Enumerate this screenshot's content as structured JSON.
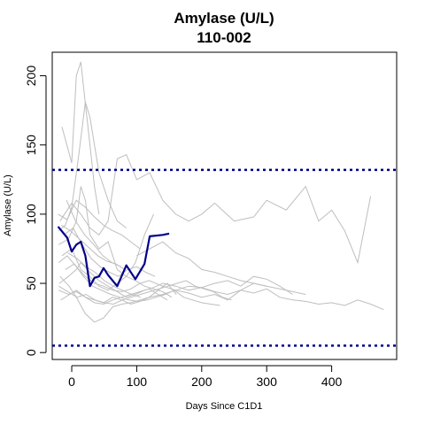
{
  "chart_data": {
    "type": "line",
    "title": "Amylase (U/L)",
    "subtitle": "110-002",
    "xlabel": "Days Since C1D1",
    "ylabel": "Amylase (U/L)",
    "xlim": [
      -30,
      500
    ],
    "ylim": [
      -5,
      217
    ],
    "xticks": [
      0,
      100,
      200,
      300,
      400
    ],
    "yticks": [
      0,
      50,
      100,
      150,
      200
    ],
    "reference_lines": [
      {
        "y": 132,
        "style": "dotted",
        "color": "#00008b"
      },
      {
        "y": 5,
        "style": "dotted",
        "color": "#00008b"
      }
    ],
    "highlight": {
      "name": "110-002",
      "color": "#00008b",
      "x": [
        -21,
        -7,
        0,
        7,
        14,
        21,
        28,
        35,
        42,
        49,
        56,
        70,
        84,
        98,
        112,
        120,
        140,
        150
      ],
      "y": [
        91,
        83,
        73,
        78,
        80,
        70,
        48,
        54,
        55,
        61,
        56,
        48,
        63,
        53,
        64,
        84,
        85,
        86
      ]
    },
    "background_series": [
      {
        "x": [
          -15,
          0,
          7,
          14,
          21,
          28,
          35,
          42
        ],
        "y": [
          163,
          137,
          200,
          210,
          180,
          150,
          120,
          100
        ]
      },
      {
        "x": [
          -20,
          -10,
          0,
          10,
          21,
          28,
          42,
          56,
          70,
          84
        ],
        "y": [
          88,
          92,
          105,
          140,
          181,
          170,
          130,
          110,
          95,
          90
        ]
      },
      {
        "x": [
          -18,
          0,
          14,
          28,
          42,
          56,
          70,
          84,
          100,
          120,
          140,
          160,
          180,
          200,
          220,
          250,
          280,
          300,
          330,
          360,
          380,
          400,
          420,
          440,
          460
        ],
        "y": [
          95,
          108,
          100,
          90,
          85,
          95,
          140,
          143,
          125,
          130,
          110,
          100,
          95,
          100,
          108,
          95,
          98,
          110,
          103,
          120,
          95,
          103,
          88,
          65,
          113
        ]
      },
      {
        "x": [
          -20,
          -5,
          7,
          21,
          35,
          49,
          63,
          77,
          91,
          105,
          120,
          140,
          160,
          180,
          200,
          220,
          240,
          260,
          280,
          300,
          320,
          340,
          360,
          380,
          400,
          420,
          440,
          460,
          480
        ],
        "y": [
          45,
          42,
          44,
          40,
          38,
          36,
          40,
          38,
          35,
          37,
          40,
          42,
          45,
          48,
          47,
          44,
          42,
          45,
          43,
          46,
          40,
          38,
          37,
          35,
          36,
          34,
          38,
          35,
          31
        ]
      },
      {
        "x": [
          -20,
          -5,
          7,
          14,
          21,
          28,
          42,
          56,
          70,
          84,
          98,
          112,
          126
        ],
        "y": [
          78,
          82,
          95,
          120,
          110,
          85,
          75,
          80,
          60,
          55,
          65,
          85,
          100
        ]
      },
      {
        "x": [
          -18,
          -4,
          7,
          21,
          35,
          49,
          63,
          77,
          91,
          105,
          119,
          133,
          147,
          161
        ],
        "y": [
          55,
          48,
          40,
          28,
          22,
          25,
          33,
          35,
          36,
          38,
          40,
          45,
          50,
          42
        ]
      },
      {
        "x": [
          -20,
          -7,
          7,
          21,
          35,
          49,
          63,
          77,
          91,
          105,
          119,
          140,
          160,
          180,
          200,
          220,
          240,
          260,
          280,
          300
        ],
        "y": [
          65,
          70,
          62,
          55,
          50,
          48,
          45,
          44,
          46,
          50,
          52,
          48,
          45,
          43,
          40,
          42,
          38,
          45,
          50,
          48
        ]
      },
      {
        "x": [
          -21,
          -7,
          7,
          21,
          35,
          49,
          63,
          77,
          91,
          105
        ],
        "y": [
          100,
          96,
          110,
          105,
          98,
          92,
          88,
          85,
          80,
          75
        ]
      },
      {
        "x": [
          -19,
          -5,
          7,
          14,
          28,
          42,
          56,
          70,
          84,
          98,
          112,
          126,
          140,
          160,
          180,
          200,
          220,
          240,
          260,
          280,
          300,
          320,
          340
        ],
        "y": [
          50,
          55,
          60,
          65,
          58,
          52,
          48,
          44,
          40,
          42,
          45,
          47,
          50,
          48,
          45,
          47,
          50,
          52,
          48,
          55,
          53,
          48,
          42
        ]
      },
      {
        "x": [
          -17,
          -3,
          7,
          21,
          35,
          49,
          63,
          77,
          91,
          105,
          119,
          133,
          147
        ],
        "y": [
          38,
          42,
          45,
          40,
          36,
          35,
          38,
          40,
          42,
          44,
          46,
          42,
          38
        ]
      },
      {
        "x": [
          -15,
          0,
          14,
          28,
          42,
          56,
          70,
          84,
          98,
          112,
          126,
          140,
          154
        ],
        "y": [
          70,
          75,
          60,
          55,
          48,
          45,
          50,
          55,
          52,
          48,
          46,
          44,
          40
        ]
      },
      {
        "x": [
          -12,
          2,
          16,
          30,
          44,
          58,
          72,
          86,
          100,
          114,
          128
        ],
        "y": [
          85,
          90,
          78,
          68,
          62,
          58,
          55,
          60,
          62,
          58,
          55
        ]
      },
      {
        "x": [
          -10,
          4,
          18,
          32,
          46,
          60,
          74,
          88,
          102,
          116,
          130,
          144,
          158,
          172,
          186,
          200,
          214,
          228
        ],
        "y": [
          60,
          64,
          55,
          48,
          45,
          42,
          40,
          38,
          37,
          38,
          40,
          42,
          45,
          40,
          38,
          36,
          35,
          34
        ]
      },
      {
        "x": [
          -8,
          6,
          20,
          34,
          48,
          62,
          76
        ],
        "y": [
          110,
          95,
          85,
          78,
          70,
          65,
          62
        ]
      },
      {
        "x": [
          -6,
          8,
          22,
          36,
          50,
          64,
          78,
          92,
          106
        ],
        "y": [
          72,
          68,
          62,
          58,
          52,
          48,
          45,
          42,
          40
        ]
      },
      {
        "x": [
          -20,
          -6,
          8,
          22,
          36,
          50,
          64,
          78,
          92,
          106,
          120,
          134,
          148,
          162,
          176,
          190,
          204,
          218,
          232,
          246
        ],
        "y": [
          48,
          44,
          40,
          42,
          38,
          36,
          35,
          38,
          40,
          42,
          44,
          46,
          48,
          50,
          52,
          48,
          46,
          44,
          40,
          38
        ]
      },
      {
        "x": [
          100,
          120,
          140,
          160,
          180,
          200,
          220,
          240,
          260,
          280,
          300,
          320,
          340,
          360
        ],
        "y": [
          70,
          75,
          80,
          72,
          68,
          60,
          58,
          55,
          52,
          50,
          48,
          46,
          44,
          42
        ]
      },
      {
        "x": [
          -16,
          -2,
          12,
          26,
          40,
          54,
          68,
          82
        ],
        "y": [
          92,
          88,
          82,
          76,
          70,
          66,
          64,
          60
        ]
      }
    ]
  }
}
